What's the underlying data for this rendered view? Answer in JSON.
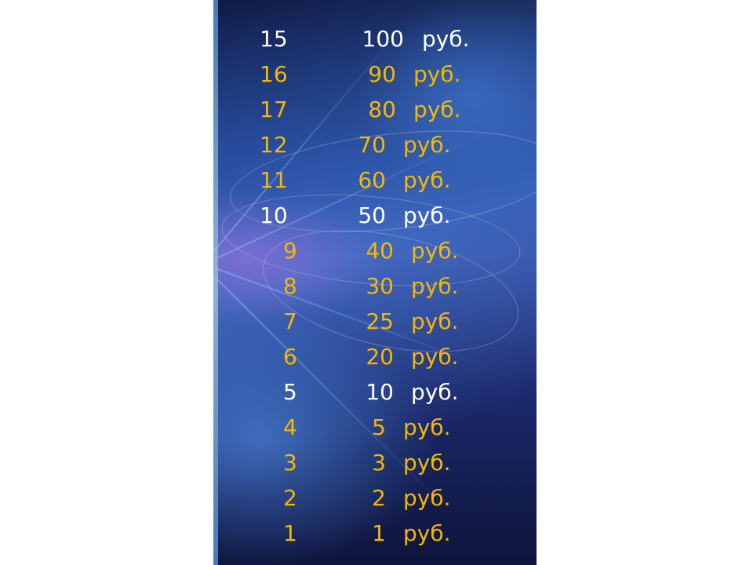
{
  "colors": {
    "highlight": "#ffffff",
    "normal": "#f5b800"
  },
  "prize_ladder": [
    {
      "level": "15",
      "amount": "100",
      "currency": "руб.",
      "milestone": true
    },
    {
      "level": "16",
      "amount": "90",
      "currency": "руб.",
      "milestone": false
    },
    {
      "level": "17",
      "amount": "80",
      "currency": "руб.",
      "milestone": false
    },
    {
      "level": "12",
      "amount": "70",
      "currency": "руб.",
      "milestone": false
    },
    {
      "level": "11",
      "amount": "60",
      "currency": "руб.",
      "milestone": false
    },
    {
      "level": "10",
      "amount": "50",
      "currency": "руб.",
      "milestone": true
    },
    {
      "level": "9",
      "amount": "40",
      "currency": "руб.",
      "milestone": false
    },
    {
      "level": "8",
      "amount": "30",
      "currency": "руб.",
      "milestone": false
    },
    {
      "level": "7",
      "amount": "25",
      "currency": "руб.",
      "milestone": false
    },
    {
      "level": "6",
      "amount": "20",
      "currency": "руб.",
      "milestone": false
    },
    {
      "level": "5",
      "amount": "10",
      "currency": "руб.",
      "milestone": true
    },
    {
      "level": "4",
      "amount": "5",
      "currency": "руб.",
      "milestone": false
    },
    {
      "level": "3",
      "amount": "3",
      "currency": "руб.",
      "milestone": false
    },
    {
      "level": "2",
      "amount": "2",
      "currency": "руб.",
      "milestone": false
    },
    {
      "level": "1",
      "amount": "1",
      "currency": "руб.",
      "milestone": false
    }
  ]
}
